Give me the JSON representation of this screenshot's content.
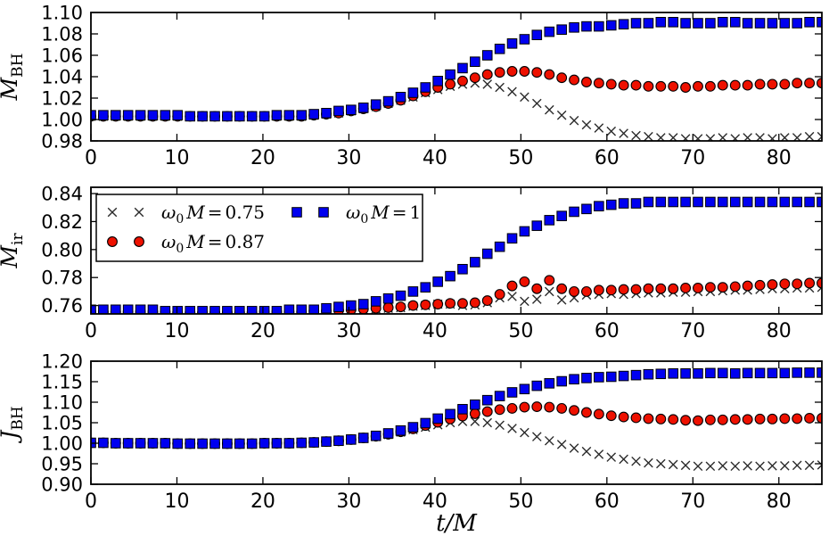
{
  "figure": {
    "background": "#ffffff",
    "xlabel": "t/M",
    "x_tick_labels": [
      "0",
      "10",
      "20",
      "30",
      "40",
      "50",
      "60",
      "70",
      "80"
    ],
    "x_tick_values": [
      0,
      10,
      20,
      30,
      40,
      50,
      60,
      70,
      80
    ],
    "legend": {
      "entries": [
        {
          "id": "w0m-075",
          "marker": "x",
          "color": "#2b2b2b",
          "omega": "ω",
          "omega_sub": "0",
          "var": "M",
          "eq": "=",
          "value": "0.75",
          "col": 0,
          "row": 0
        },
        {
          "id": "w0m-087",
          "marker": "circle",
          "color": "#ee1100",
          "omega": "ω",
          "omega_sub": "0",
          "var": "M",
          "eq": "=",
          "value": "0.87",
          "col": 0,
          "row": 1
        },
        {
          "id": "w0m-1",
          "marker": "square",
          "color": "#0000f0",
          "omega": "ω",
          "omega_sub": "0",
          "var": "M",
          "eq": "=",
          "value": "1",
          "col": 1,
          "row": 0
        }
      ]
    }
  },
  "chart_data": [
    {
      "id": "mbh",
      "type": "scatter",
      "ylabel": {
        "var": "M",
        "sub": "BH"
      },
      "xlim": [
        0,
        85
      ],
      "ylim": [
        0.98,
        1.1
      ],
      "yticks": [
        0.98,
        1.0,
        1.02,
        1.04,
        1.06,
        1.08,
        1.1
      ],
      "ytick_labels": [
        "0.98",
        "1.00",
        "1.02",
        "1.04",
        "1.06",
        "1.08",
        "1.10"
      ],
      "x": [
        0,
        1.44,
        2.88,
        4.32,
        5.76,
        7.2,
        8.64,
        10.08,
        11.53,
        12.97,
        14.41,
        15.85,
        17.29,
        18.73,
        20.17,
        21.61,
        23.05,
        24.49,
        25.93,
        27.37,
        28.81,
        30.25,
        31.69,
        33.14,
        34.58,
        36.02,
        37.46,
        38.9,
        40.34,
        41.78,
        43.22,
        44.66,
        46.1,
        47.54,
        48.98,
        50.42,
        51.86,
        53.31,
        54.75,
        56.19,
        57.63,
        59.07,
        60.51,
        61.95,
        63.39,
        64.83,
        66.27,
        67.71,
        69.15,
        70.59,
        72.03,
        73.47,
        74.92,
        76.36,
        77.8,
        79.24,
        80.68,
        82.12,
        83.56,
        85
      ],
      "series": [
        {
          "id": "w0m-075",
          "name": "ω0 M = 0.75",
          "marker": "x",
          "color": "#2b2b2b",
          "values": [
            1.003,
            1.003,
            1.003,
            1.003,
            1.003,
            1.003,
            1.003,
            1.003,
            1.003,
            1.003,
            1.003,
            1.003,
            1.003,
            1.003,
            1.003,
            1.003,
            1.003,
            1.003,
            1.004,
            1.005,
            1.006,
            1.008,
            1.01,
            1.012,
            1.015,
            1.018,
            1.021,
            1.025,
            1.028,
            1.031,
            1.033,
            1.034,
            1.033,
            1.03,
            1.026,
            1.021,
            1.015,
            1.009,
            1.004,
            0.999,
            0.995,
            0.992,
            0.989,
            0.987,
            0.985,
            0.984,
            0.983,
            0.983,
            0.982,
            0.982,
            0.982,
            0.983,
            0.982,
            0.983,
            0.983,
            0.982,
            0.983,
            0.983,
            0.984,
            0.984
          ]
        },
        {
          "id": "w0m-087",
          "name": "ω0 M = 0.87",
          "marker": "circle",
          "color": "#ee1100",
          "values": [
            1.003,
            1.003,
            1.003,
            1.003,
            1.003,
            1.003,
            1.003,
            1.003,
            1.003,
            1.003,
            1.003,
            1.003,
            1.003,
            1.003,
            1.003,
            1.003,
            1.003,
            1.003,
            1.004,
            1.005,
            1.006,
            1.008,
            1.01,
            1.012,
            1.015,
            1.018,
            1.022,
            1.026,
            1.03,
            1.033,
            1.036,
            1.039,
            1.042,
            1.044,
            1.045,
            1.045,
            1.044,
            1.042,
            1.039,
            1.037,
            1.035,
            1.034,
            1.033,
            1.032,
            1.032,
            1.031,
            1.031,
            1.031,
            1.03,
            1.031,
            1.031,
            1.032,
            1.032,
            1.032,
            1.033,
            1.033,
            1.033,
            1.034,
            1.034,
            1.034
          ]
        },
        {
          "id": "w0m-1",
          "name": "ω0 M = 1",
          "marker": "square",
          "color": "#0000f0",
          "values": [
            1.004,
            1.004,
            1.004,
            1.004,
            1.004,
            1.004,
            1.004,
            1.004,
            1.003,
            1.003,
            1.003,
            1.003,
            1.003,
            1.003,
            1.003,
            1.004,
            1.004,
            1.004,
            1.005,
            1.006,
            1.008,
            1.009,
            1.011,
            1.014,
            1.017,
            1.021,
            1.025,
            1.03,
            1.036,
            1.042,
            1.048,
            1.054,
            1.06,
            1.066,
            1.071,
            1.075,
            1.079,
            1.082,
            1.084,
            1.086,
            1.087,
            1.087,
            1.088,
            1.089,
            1.09,
            1.09,
            1.091,
            1.091,
            1.09,
            1.09,
            1.09,
            1.091,
            1.091,
            1.09,
            1.09,
            1.09,
            1.09,
            1.09,
            1.091,
            1.091
          ]
        }
      ]
    },
    {
      "id": "mir",
      "type": "scatter",
      "ylabel": {
        "var": "M",
        "sub": "ir"
      },
      "has_legend": true,
      "xlim": [
        0,
        85
      ],
      "ylim": [
        0.754,
        0.8445
      ],
      "yticks": [
        0.76,
        0.78,
        0.8,
        0.82,
        0.84
      ],
      "ytick_labels": [
        "0.76",
        "0.78",
        "0.80",
        "0.82",
        "0.84"
      ],
      "x": [
        0,
        1.44,
        2.88,
        4.32,
        5.76,
        7.2,
        8.64,
        10.08,
        11.53,
        12.97,
        14.41,
        15.85,
        17.29,
        18.73,
        20.17,
        21.61,
        23.05,
        24.49,
        25.93,
        27.37,
        28.81,
        30.25,
        31.69,
        33.14,
        34.58,
        36.02,
        37.46,
        38.9,
        40.34,
        41.78,
        43.22,
        44.66,
        46.1,
        47.54,
        48.98,
        50.42,
        51.86,
        53.31,
        54.75,
        56.19,
        57.63,
        59.07,
        60.51,
        61.95,
        63.39,
        64.83,
        66.27,
        67.71,
        69.15,
        70.59,
        72.03,
        73.47,
        74.92,
        76.36,
        77.8,
        79.24,
        80.68,
        82.12,
        83.56,
        85
      ],
      "series": [
        {
          "id": "w0m-075",
          "name": "ω0 M = 0.75",
          "marker": "x",
          "color": "#2b2b2b",
          "values": [
            0.755,
            0.755,
            0.755,
            0.755,
            0.755,
            0.755,
            0.755,
            0.755,
            0.755,
            0.755,
            0.755,
            0.755,
            0.755,
            0.755,
            0.755,
            0.755,
            0.755,
            0.755,
            0.7555,
            0.756,
            0.756,
            0.7565,
            0.757,
            0.7575,
            0.758,
            0.7585,
            0.7595,
            0.76,
            0.761,
            0.761,
            0.76,
            0.7605,
            0.762,
            0.7655,
            0.7665,
            0.763,
            0.7645,
            0.77,
            0.764,
            0.7655,
            0.7675,
            0.768,
            0.7685,
            0.768,
            0.7685,
            0.769,
            0.769,
            0.7695,
            0.7695,
            0.77,
            0.77,
            0.7705,
            0.771,
            0.771,
            0.7715,
            0.772,
            0.772,
            0.7725,
            0.7725,
            0.773
          ]
        },
        {
          "id": "w0m-087",
          "name": "ω0 M = 0.87",
          "marker": "circle",
          "color": "#ee1100",
          "values": [
            0.7555,
            0.7555,
            0.7555,
            0.7555,
            0.7555,
            0.7555,
            0.7555,
            0.755,
            0.755,
            0.755,
            0.755,
            0.755,
            0.755,
            0.755,
            0.7555,
            0.7555,
            0.7555,
            0.7555,
            0.756,
            0.756,
            0.7565,
            0.757,
            0.7575,
            0.758,
            0.7585,
            0.759,
            0.76,
            0.7605,
            0.761,
            0.7615,
            0.7615,
            0.762,
            0.7635,
            0.768,
            0.774,
            0.777,
            0.772,
            0.778,
            0.772,
            0.77,
            0.77,
            0.771,
            0.771,
            0.7715,
            0.7715,
            0.772,
            0.772,
            0.772,
            0.7725,
            0.7725,
            0.773,
            0.773,
            0.7735,
            0.774,
            0.7745,
            0.775,
            0.7755,
            0.7755,
            0.776,
            0.776
          ]
        },
        {
          "id": "w0m-1",
          "name": "ω0 M = 1",
          "marker": "square",
          "color": "#0000f0",
          "values": [
            0.757,
            0.757,
            0.757,
            0.757,
            0.757,
            0.757,
            0.756,
            0.756,
            0.756,
            0.756,
            0.756,
            0.756,
            0.756,
            0.756,
            0.756,
            0.756,
            0.757,
            0.757,
            0.757,
            0.758,
            0.759,
            0.76,
            0.761,
            0.763,
            0.765,
            0.767,
            0.77,
            0.773,
            0.777,
            0.781,
            0.786,
            0.791,
            0.797,
            0.802,
            0.808,
            0.813,
            0.817,
            0.821,
            0.824,
            0.827,
            0.829,
            0.831,
            0.832,
            0.833,
            0.833,
            0.834,
            0.834,
            0.834,
            0.834,
            0.834,
            0.834,
            0.834,
            0.834,
            0.834,
            0.834,
            0.834,
            0.834,
            0.834,
            0.834,
            0.834
          ]
        }
      ]
    },
    {
      "id": "jbh",
      "type": "scatter",
      "ylabel": {
        "var": "J",
        "sub": "BH"
      },
      "has_xlabel": true,
      "xlim": [
        0,
        85
      ],
      "ylim": [
        0.9,
        1.2
      ],
      "yticks": [
        0.9,
        0.95,
        1.0,
        1.05,
        1.1,
        1.15,
        1.2
      ],
      "ytick_labels": [
        "0.90",
        "0.95",
        "1.00",
        "1.05",
        "1.10",
        "1.15",
        "1.20"
      ],
      "x": [
        0,
        1.44,
        2.88,
        4.32,
        5.76,
        7.2,
        8.64,
        10.08,
        11.53,
        12.97,
        14.41,
        15.85,
        17.29,
        18.73,
        20.17,
        21.61,
        23.05,
        24.49,
        25.93,
        27.37,
        28.81,
        30.25,
        31.69,
        33.14,
        34.58,
        36.02,
        37.46,
        38.9,
        40.34,
        41.78,
        43.22,
        44.66,
        46.1,
        47.54,
        48.98,
        50.42,
        51.86,
        53.31,
        54.75,
        56.19,
        57.63,
        59.07,
        60.51,
        61.95,
        63.39,
        64.83,
        66.27,
        67.71,
        69.15,
        70.59,
        72.03,
        73.47,
        74.92,
        76.36,
        77.8,
        79.24,
        80.68,
        82.12,
        83.56,
        85
      ],
      "series": [
        {
          "id": "w0m-075",
          "name": "ω0 M = 0.75",
          "marker": "x",
          "color": "#2b2b2b",
          "values": [
            1.001,
            1.001,
            1.0,
            1.0,
            1.0,
            1.0,
            1.0,
            0.999,
            0.999,
            0.999,
            0.999,
            0.999,
            0.999,
            0.999,
            1.0,
            1.0,
            1.0,
            1.001,
            1.002,
            1.003,
            1.005,
            1.008,
            1.012,
            1.016,
            1.021,
            1.027,
            1.033,
            1.039,
            1.045,
            1.05,
            1.053,
            1.053,
            1.05,
            1.044,
            1.036,
            1.026,
            1.016,
            1.006,
            0.997,
            0.988,
            0.98,
            0.973,
            0.966,
            0.961,
            0.956,
            0.952,
            0.95,
            0.948,
            0.946,
            0.944,
            0.944,
            0.945,
            0.944,
            0.945,
            0.944,
            0.945,
            0.945,
            0.946,
            0.946,
            0.947
          ]
        },
        {
          "id": "w0m-087",
          "name": "ω0 M = 0.87",
          "marker": "circle",
          "color": "#ee1100",
          "values": [
            1.001,
            1.001,
            1.0,
            1.0,
            1.0,
            1.0,
            1.0,
            0.999,
            0.999,
            0.999,
            0.999,
            0.999,
            0.999,
            0.999,
            1.0,
            1.0,
            1.0,
            1.001,
            1.002,
            1.004,
            1.006,
            1.009,
            1.013,
            1.017,
            1.022,
            1.028,
            1.035,
            1.043,
            1.051,
            1.059,
            1.066,
            1.072,
            1.077,
            1.082,
            1.085,
            1.088,
            1.089,
            1.088,
            1.085,
            1.08,
            1.075,
            1.071,
            1.067,
            1.064,
            1.062,
            1.06,
            1.059,
            1.058,
            1.056,
            1.055,
            1.057,
            1.057,
            1.058,
            1.058,
            1.059,
            1.059,
            1.06,
            1.06,
            1.061,
            1.061
          ]
        },
        {
          "id": "w0m-1",
          "name": "ω0 M = 1",
          "marker": "square",
          "color": "#0000f0",
          "values": [
            1.001,
            1.001,
            1.0,
            1.0,
            1.0,
            1.0,
            1.0,
            0.999,
            0.999,
            0.999,
            0.999,
            0.999,
            0.999,
            0.999,
            1.0,
            1.0,
            1.0,
            1.001,
            1.002,
            1.004,
            1.006,
            1.009,
            1.013,
            1.018,
            1.024,
            1.031,
            1.039,
            1.049,
            1.06,
            1.071,
            1.083,
            1.094,
            1.105,
            1.115,
            1.124,
            1.132,
            1.14,
            1.146,
            1.151,
            1.156,
            1.159,
            1.161,
            1.162,
            1.164,
            1.166,
            1.168,
            1.169,
            1.17,
            1.17,
            1.17,
            1.171,
            1.171,
            1.17,
            1.171,
            1.171,
            1.171,
            1.171,
            1.172,
            1.172,
            1.172
          ]
        }
      ]
    }
  ]
}
